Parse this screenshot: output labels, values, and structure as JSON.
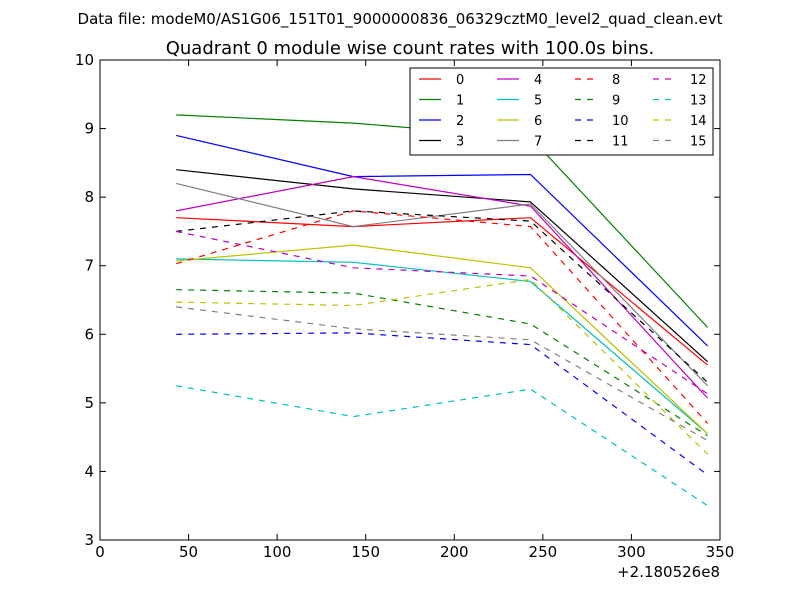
{
  "suptitle": "Data file: modeM0/AS1G06_151T01_9000000836_06329cztM0_level2_quad_clean.evt",
  "chart_data": {
    "type": "line",
    "title": "Quadrant 0 module wise count rates with 100.0s bins.",
    "xlabel": "",
    "ylabel": "",
    "x_offset_label": "+2.180526e8",
    "xlim": [
      0,
      350
    ],
    "ylim": [
      3,
      10
    ],
    "x_ticks": [
      0,
      50,
      100,
      150,
      200,
      250,
      300,
      350
    ],
    "y_ticks": [
      3,
      4,
      5,
      6,
      7,
      8,
      9,
      10
    ],
    "x": [
      43,
      143,
      243,
      343
    ],
    "legend_position": "top-right",
    "legend_columns": 4,
    "series": [
      {
        "name": "0",
        "color": "#ff0000",
        "dash": "solid",
        "values": [
          7.7,
          7.57,
          7.7,
          5.55
        ]
      },
      {
        "name": "1",
        "color": "#008000",
        "dash": "solid",
        "values": [
          9.2,
          9.08,
          8.87,
          6.1
        ]
      },
      {
        "name": "2",
        "color": "#0000ff",
        "dash": "solid",
        "values": [
          8.9,
          8.3,
          8.33,
          5.83
        ]
      },
      {
        "name": "3",
        "color": "#000000",
        "dash": "solid",
        "values": [
          8.4,
          8.12,
          7.93,
          5.6
        ]
      },
      {
        "name": "4",
        "color": "#c000c0",
        "dash": "solid",
        "values": [
          7.8,
          8.3,
          7.87,
          5.07
        ]
      },
      {
        "name": "5",
        "color": "#00bfbf",
        "dash": "solid",
        "values": [
          7.1,
          7.05,
          6.77,
          4.55
        ]
      },
      {
        "name": "6",
        "color": "#bfbf00",
        "dash": "solid",
        "values": [
          7.07,
          7.3,
          6.97,
          4.55
        ]
      },
      {
        "name": "7",
        "color": "#808080",
        "dash": "solid",
        "values": [
          8.2,
          7.57,
          7.9,
          5.25
        ]
      },
      {
        "name": "8",
        "color": "#ff0000",
        "dash": "dashed",
        "values": [
          7.03,
          7.8,
          7.57,
          4.7
        ]
      },
      {
        "name": "9",
        "color": "#008000",
        "dash": "dashed",
        "values": [
          6.65,
          6.6,
          6.15,
          4.52
        ]
      },
      {
        "name": "10",
        "color": "#0000ff",
        "dash": "dashed",
        "values": [
          6.0,
          6.02,
          5.85,
          3.95
        ]
      },
      {
        "name": "11",
        "color": "#000000",
        "dash": "dashed",
        "values": [
          7.5,
          7.8,
          7.65,
          5.3
        ]
      },
      {
        "name": "12",
        "color": "#c000c0",
        "dash": "dashed",
        "values": [
          7.5,
          6.97,
          6.85,
          5.13
        ]
      },
      {
        "name": "13",
        "color": "#00bfbf",
        "dash": "dashed",
        "values": [
          5.25,
          4.8,
          5.2,
          3.5
        ]
      },
      {
        "name": "14",
        "color": "#bfbf00",
        "dash": "dashed",
        "values": [
          6.47,
          6.42,
          6.8,
          4.25
        ]
      },
      {
        "name": "15",
        "color": "#808080",
        "dash": "dashed",
        "values": [
          6.4,
          6.08,
          5.92,
          4.45
        ]
      }
    ]
  }
}
